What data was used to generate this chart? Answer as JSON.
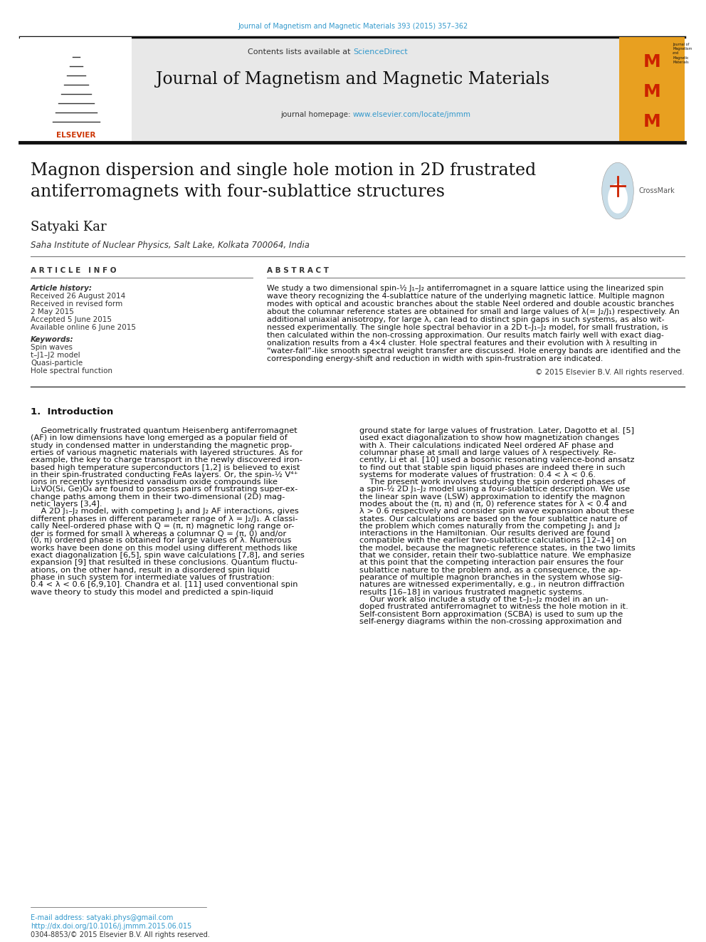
{
  "page_width": 9.92,
  "page_height": 13.23,
  "bg_color": "#ffffff",
  "journal_citation": "Journal of Magnetism and Magnetic Materials 393 (2015) 357–362",
  "journal_citation_color": "#3399cc",
  "contents_text": "Contents lists available at ",
  "sciencedirect_text": "ScienceDirect",
  "sciencedirect_color": "#3399cc",
  "journal_name": "Journal of Magnetism and Magnetic Materials",
  "journal_homepage_prefix": "journal homepage: ",
  "journal_homepage_url": "www.elsevier.com/locate/jmmm",
  "journal_homepage_url_color": "#3399cc",
  "header_bg_color": "#e8e8e8",
  "header_bar_color": "#1a1a1a",
  "article_title": "Magnon dispersion and single hole motion in 2D frustrated\nantiferromagnets with four-sublattice structures",
  "article_title_fontsize": 17,
  "author_name": "Satyaki Kar",
  "author_fontsize": 13,
  "affiliation": "Saha Institute of Nuclear Physics, Salt Lake, Kolkata 700064, India",
  "affiliation_fontsize": 9,
  "section_article_info": "A R T I C L E   I N F O",
  "section_abstract": "A B S T R A C T",
  "article_history_label": "Article history:",
  "article_history_items": [
    "Received 26 August 2014",
    "Received in revised form",
    "2 May 2015",
    "Accepted 5 June 2015",
    "Available online 6 June 2015"
  ],
  "keywords_label": "Keywords:",
  "keywords_items": [
    "Spin waves",
    "t–J1–J2 model",
    "Quasi-particle",
    "Hole spectral function"
  ],
  "copyright_text": "© 2015 Elsevier B.V. All rights reserved.",
  "intro_heading": "1.  Introduction",
  "footer_email": "E-mail address: satyaki.phys@gmail.com",
  "footer_doi": "http://dx.doi.org/10.1016/j.jmmm.2015.06.015",
  "footer_issn": "0304-8853/© 2015 Elsevier B.V. All rights reserved.",
  "ref_numbers_color": "#3399cc",
  "text_color": "#000000",
  "small_text_fontsize": 7.5,
  "body_text_fontsize": 8.2
}
